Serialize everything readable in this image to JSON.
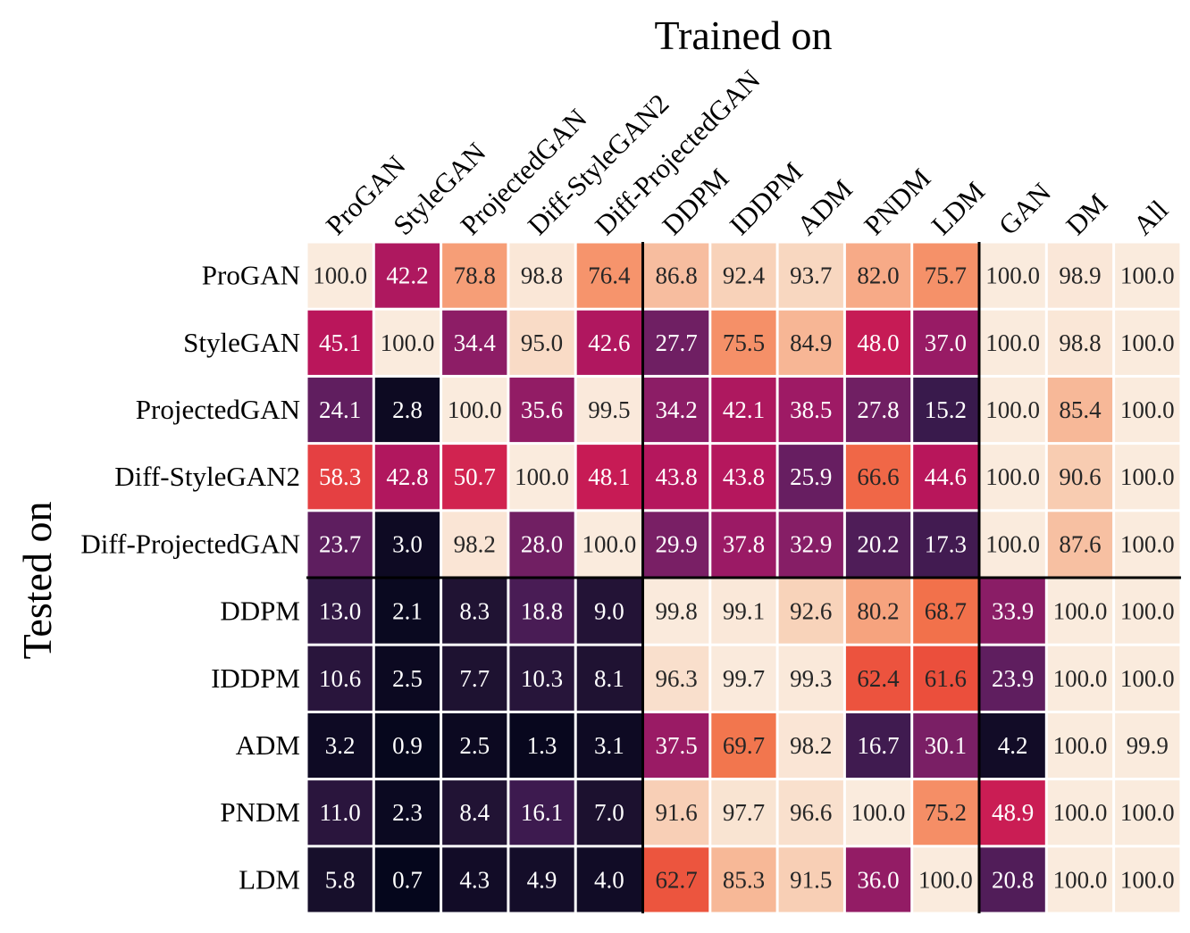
{
  "chart_data": {
    "type": "heatmap",
    "title": "",
    "xlabel": "Trained on",
    "ylabel": "Tested on",
    "columns": [
      "ProGAN",
      "StyleGAN",
      "ProjectedGAN",
      "Diff-StyleGAN2",
      "Diff-ProjectedGAN",
      "DDPM",
      "IDDPM",
      "ADM",
      "PNDM",
      "LDM",
      "GAN",
      "DM",
      "All"
    ],
    "rows": [
      "ProGAN",
      "StyleGAN",
      "ProjectedGAN",
      "Diff-StyleGAN2",
      "Diff-ProjectedGAN",
      "DDPM",
      "IDDPM",
      "ADM",
      "PNDM",
      "LDM"
    ],
    "values": [
      [
        "100.0",
        "42.2",
        "78.8",
        "98.8",
        "76.4",
        "86.8",
        "92.4",
        "93.7",
        "82.0",
        "75.7",
        "100.0",
        "98.9",
        "100.0"
      ],
      [
        "45.1",
        "100.0",
        "34.4",
        "95.0",
        "42.6",
        "27.7",
        "75.5",
        "84.9",
        "48.0",
        "37.0",
        "100.0",
        "98.8",
        "100.0"
      ],
      [
        "24.1",
        "2.8",
        "100.0",
        "35.6",
        "99.5",
        "34.2",
        "42.1",
        "38.5",
        "27.8",
        "15.2",
        "100.0",
        "85.4",
        "100.0"
      ],
      [
        "58.3",
        "42.8",
        "50.7",
        "100.0",
        "48.1",
        "43.8",
        "43.8",
        "25.9",
        "66.6",
        "44.6",
        "100.0",
        "90.6",
        "100.0"
      ],
      [
        "23.7",
        "3.0",
        "98.2",
        "28.0",
        "100.0",
        "29.9",
        "37.8",
        "32.9",
        "20.2",
        "17.3",
        "100.0",
        "87.6",
        "100.0"
      ],
      [
        "13.0",
        "2.1",
        "8.3",
        "18.8",
        "9.0",
        "99.8",
        "99.1",
        "92.6",
        "80.2",
        "68.7",
        "33.9",
        "100.0",
        "100.0"
      ],
      [
        "10.6",
        "2.5",
        "7.7",
        "10.3",
        "8.1",
        "96.3",
        "99.7",
        "99.3",
        "62.4",
        "61.6",
        "23.9",
        "100.0",
        "100.0"
      ],
      [
        "3.2",
        "0.9",
        "2.5",
        "1.3",
        "3.1",
        "37.5",
        "69.7",
        "98.2",
        "16.7",
        "30.1",
        "4.2",
        "100.0",
        "99.9"
      ],
      [
        "11.0",
        "2.3",
        "8.4",
        "16.1",
        "7.0",
        "91.6",
        "97.7",
        "96.6",
        "100.0",
        "75.2",
        "48.9",
        "100.0",
        "100.0"
      ],
      [
        "5.8",
        "0.7",
        "4.3",
        "4.9",
        "4.0",
        "62.7",
        "85.3",
        "91.5",
        "36.0",
        "100.0",
        "20.8",
        "100.0",
        "100.0"
      ]
    ],
    "value_range": [
      0,
      100
    ],
    "colormap": "rocket",
    "colormap_stops": [
      "#03051a",
      "#1e1231",
      "#3a1a4d",
      "#5b1e5e",
      "#7d1f66",
      "#9e1a65",
      "#bf1559",
      "#dd2c4a",
      "#eb4f3c",
      "#f2744c",
      "#f6966e",
      "#f7b594",
      "#f8d2b9",
      "#faebdd"
    ],
    "column_group_dividers_after": [
      "Diff-ProjectedGAN",
      "LDM"
    ],
    "row_group_divider_after": "Diff-ProjectedGAN",
    "grid": false,
    "legend": "none"
  }
}
